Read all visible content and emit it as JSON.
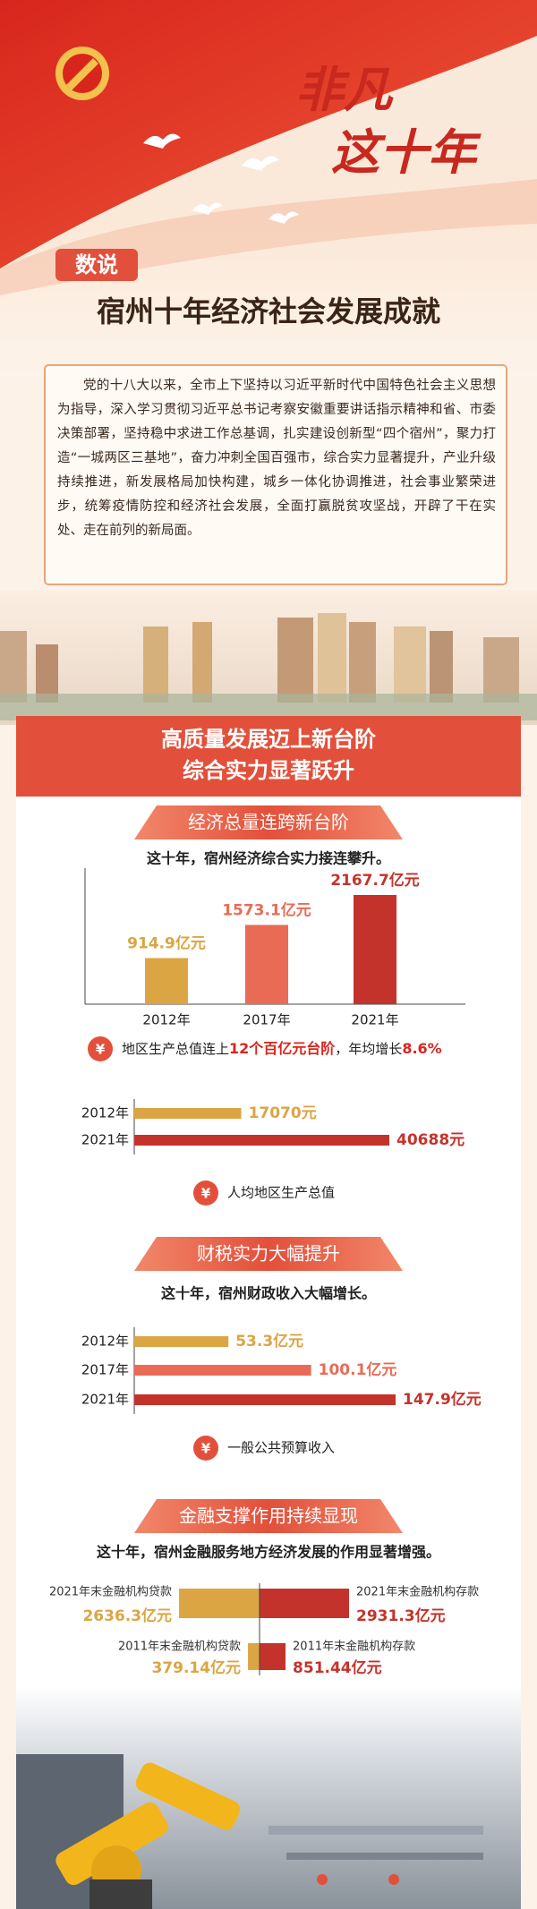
{
  "header": {
    "title_lines": [
      "非凡",
      "这十年"
    ],
    "badge": "数说",
    "title": "宿州十年经济社会发展成就"
  },
  "intro": "党的十八大以来，全市上下坚持以习近平新时代中国特色社会主义思想为指导，深入学习贯彻习近平总书记考察安徽重要讲话指示精神和省、市委决策部署，坚持稳中求进工作总基调，扎实建设创新型“四个宿州”，聚力打造“一城两区三基地”，奋力冲刺全国百强市，综合实力显著提升，产业升级持续推进，新发展格局加快构建，城乡一体化协调推进，社会事业繁荣进步，统筹疫情防控和经济社会发展，全面打赢脱贫攻坚战，开辟了干在实处、走在前列的新局面。",
  "section": {
    "title_lines": [
      "高质量发展迈上新台阶",
      "综合实力显著跃升"
    ]
  },
  "chart_data": [
    {
      "type": "bar",
      "title": "经济总量连跨新台阶",
      "subtitle": "这十年，宿州经济综合实力接连攀升。",
      "categories": [
        "2012年",
        "2017年",
        "2021年"
      ],
      "values": [
        914.9,
        1573.1,
        2167.7
      ],
      "value_labels": [
        "914.9亿元",
        "1573.1亿元",
        "2167.7亿元"
      ],
      "colors": [
        "#dba544",
        "#ea6b55",
        "#c4332b"
      ],
      "note": [
        "地区生产总值连上",
        "12个百亿元台阶",
        "，年均增长",
        "8.6%"
      ]
    },
    {
      "type": "hbar",
      "categories": [
        "2012年",
        "2021年"
      ],
      "values": [
        17070,
        40688
      ],
      "value_labels": [
        "17070元",
        "40688元"
      ],
      "colors": [
        "#dba544",
        "#c4332b"
      ],
      "caption": "人均地区生产总值"
    },
    {
      "type": "hbar",
      "title": "财税实力大幅提升",
      "subtitle": "这十年，宿州财政收入大幅增长。",
      "categories": [
        "2012年",
        "2017年",
        "2021年"
      ],
      "values": [
        53.3,
        100.1,
        147.9
      ],
      "value_labels": [
        "53.3亿元",
        "100.1亿元",
        "147.9亿元"
      ],
      "colors": [
        "#dba544",
        "#ea6b55",
        "#c4332b"
      ],
      "caption": "一般公共预算收入"
    },
    {
      "type": "butterfly",
      "title": "金融支撑作用持续显现",
      "subtitle": "这十年，宿州金融服务地方经济发展的作用显著增强。",
      "series": [
        {
          "labels": [
            "2021年末金融机构贷款",
            "2011年末金融机构贷款"
          ],
          "values": [
            2636.3,
            379.14
          ],
          "value_labels": [
            "2636.3亿元",
            "379.14亿元"
          ],
          "color": "#dba544"
        },
        {
          "labels": [
            "2021年末金融机构存款",
            "2011年末金融机构存款"
          ],
          "values": [
            2931.3,
            851.44
          ],
          "value_labels": [
            "2931.3亿元",
            "851.44亿元"
          ],
          "color": "#c4332b"
        }
      ]
    }
  ]
}
